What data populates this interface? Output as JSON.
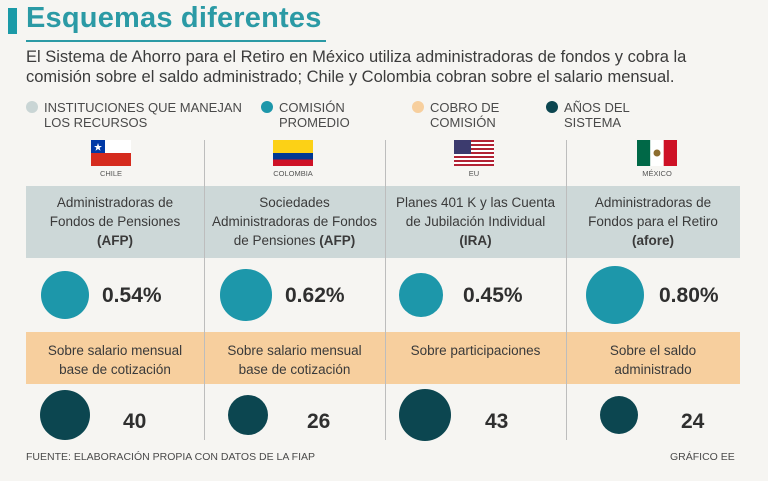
{
  "title": "Esquemas diferentes",
  "intro": "El Sistema de Ahorro para el Retiro en México utiliza administradoras de fondos y cobra la comisión sobre el saldo administrado; Chile y Colombia cobran sobre el salario mensual.",
  "legend": [
    {
      "line1": "INSTITUCIONES QUE MANEJAN",
      "line2": "LOS RECURSOS",
      "color": "#c9d5d5"
    },
    {
      "line1": "COMISIÓN",
      "line2": "PROMEDIO",
      "color": "#1d97aa"
    },
    {
      "line1": "COBRO DE",
      "line2": "COMISIÓN",
      "color": "#f7cf9e"
    },
    {
      "line1": "AÑOS DEL",
      "line2": "SISTEMA",
      "color": "#0c4650"
    }
  ],
  "chart_data": {
    "type": "table",
    "title": "Esquemas diferentes",
    "categories": [
      "CHILE",
      "COLOMBIA",
      "EU",
      "MÉXICO"
    ],
    "series": [
      {
        "name": "Comisión promedio (%)",
        "values": [
          0.54,
          0.62,
          0.45,
          0.8
        ]
      },
      {
        "name": "Años del sistema",
        "values": [
          40,
          26,
          43,
          24
        ]
      }
    ]
  },
  "columns": [
    {
      "country": "CHILE",
      "inst_l1": "Administradoras de",
      "inst_l2": "Fondos de Pensiones",
      "inst_l3_pre": "",
      "inst_abbr": "(AFP)",
      "commission_value": 0.54,
      "commission_label": "0.54%",
      "cobro_l1": "Sobre salario mensual",
      "cobro_l2": "base de cotización",
      "years_value": 40,
      "years_label": "40"
    },
    {
      "country": "COLOMBIA",
      "inst_l1": "Sociedades",
      "inst_l2": "Administradoras de Fondos",
      "inst_l3_pre": "de Pensiones ",
      "inst_abbr": "(AFP)",
      "commission_value": 0.62,
      "commission_label": "0.62%",
      "cobro_l1": "Sobre salario mensual",
      "cobro_l2": "base de cotización",
      "years_value": 26,
      "years_label": "26"
    },
    {
      "country": "EU",
      "inst_l1": "Planes 401 K y las Cuenta",
      "inst_l2": "de Jubilación Individual",
      "inst_l3_pre": "",
      "inst_abbr": "(IRA)",
      "commission_value": 0.45,
      "commission_label": "0.45%",
      "cobro_l1": "Sobre participaciones",
      "cobro_l2": "",
      "years_value": 43,
      "years_label": "43"
    },
    {
      "country": "MÉXICO",
      "inst_l1": "Administradoras de",
      "inst_l2": "Fondos para el Retiro",
      "inst_l3_pre": "",
      "inst_abbr": "(afore)",
      "commission_value": 0.8,
      "commission_label": "0.80%",
      "cobro_l1": "Sobre el saldo",
      "cobro_l2": "administrado",
      "years_value": 24,
      "years_label": "24"
    }
  ],
  "colors": {
    "commission": "#1d97aa",
    "years": "#0c4650"
  },
  "footer_source": "FUENTE: ELABORACIÓN PROPIA CON DATOS DE LA FIAP",
  "footer_credit": "GRÁFICO EE"
}
